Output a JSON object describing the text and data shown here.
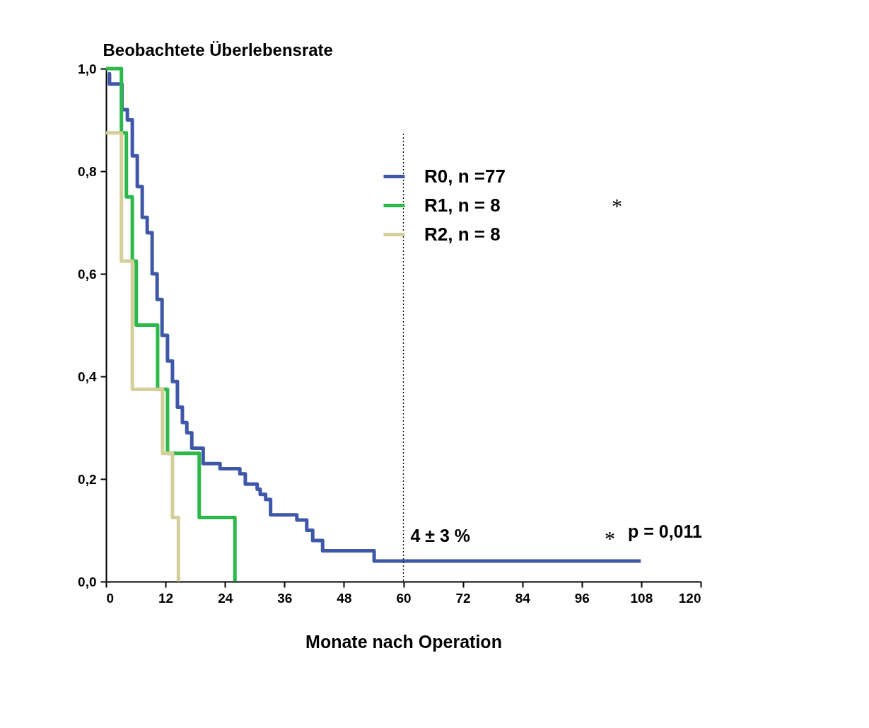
{
  "chart_data": {
    "type": "step",
    "ylabel": "Beobachtete Überlebensrate",
    "xlabel": "Monate nach Operation",
    "xlim": [
      0,
      120
    ],
    "xticks": [
      0,
      12,
      24,
      36,
      48,
      60,
      72,
      84,
      96,
      108,
      120
    ],
    "ylim": [
      0,
      1
    ],
    "yticks": [
      {
        "value": 0,
        "label": "0,0"
      },
      {
        "value": 0.2,
        "label": "0,2"
      },
      {
        "value": 0.4,
        "label": "0,4"
      },
      {
        "value": 0.6,
        "label": "0,6"
      },
      {
        "value": 0.8,
        "label": "0,8"
      },
      {
        "value": 1,
        "label": "1,0"
      }
    ],
    "grid": false,
    "legend": "top right",
    "line_style": "solid",
    "marker": "none",
    "series": [
      {
        "name": "R0, n =77",
        "color": "#3f57a8",
        "x": [
          0.4,
          0.7,
          3.2,
          4.3,
          5.3,
          6.3,
          7.3,
          8.3,
          9.3,
          10.3,
          11.3,
          12.4,
          13.4,
          14.4,
          15.4,
          16.3,
          17.3,
          19.6,
          23.0,
          27.0,
          28.1,
          30.5,
          31.1,
          32.2,
          33.2,
          38.5,
          40.5,
          41.7,
          43.7,
          54.1,
          107.9
        ],
        "values": [
          0.99,
          0.97,
          0.92,
          0.9,
          0.83,
          0.77,
          0.71,
          0.68,
          0.6,
          0.55,
          0.48,
          0.43,
          0.39,
          0.34,
          0.31,
          0.29,
          0.26,
          0.23,
          0.22,
          0.21,
          0.19,
          0.18,
          0.17,
          0.16,
          0.13,
          0.12,
          0.1,
          0.08,
          0.06,
          0.04,
          0.04
        ]
      },
      {
        "name": "R1, n =  8",
        "color": "#2db84a",
        "x": [
          0,
          3.1,
          4.1,
          5.3,
          6.1,
          10.4,
          12.4,
          18.8,
          26.0
        ],
        "values": [
          1.0,
          0.875,
          0.75,
          0.625,
          0.5,
          0.375,
          0.25,
          0.125,
          0
        ]
      },
      {
        "name": "R2, n =  8",
        "color": "#d4ce98",
        "x": [
          0,
          3.1,
          5.3,
          11.4,
          13.4,
          14.6
        ],
        "values": [
          0.875,
          0.625,
          0.375,
          0.25,
          0.125,
          0
        ]
      }
    ],
    "ref_lines": [
      {
        "axis": "x",
        "value": 60,
        "line_style": "dotted",
        "color": "#000000"
      }
    ],
    "annotations": [
      {
        "text": "4 ± 3 %",
        "x": 60,
        "y": 0.04
      },
      "*",
      "*",
      "p = 0,011"
    ]
  }
}
